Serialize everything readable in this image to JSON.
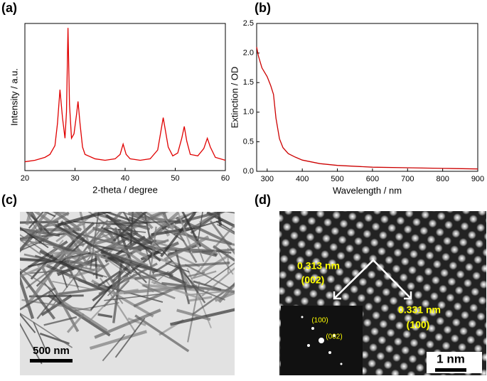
{
  "chart_data": [
    {
      "type": "line",
      "panel_label": "(a)",
      "x_label": "2-theta / degree",
      "y_label": "Intensity / a.u.",
      "color": "#e00000",
      "x": [
        20,
        22,
        24,
        25,
        26,
        26.5,
        27,
        27.5,
        28,
        28.3,
        28.6,
        28.9,
        29.3,
        29.8,
        30.3,
        30.6,
        31,
        31.5,
        32,
        34,
        36,
        38,
        39,
        39.6,
        40.2,
        41,
        43,
        45,
        46.5,
        47.2,
        47.6,
        48,
        48.6,
        49.5,
        50.5,
        51.3,
        51.8,
        52.3,
        53,
        54.5,
        55.7,
        56.4,
        57,
        58,
        60
      ],
      "values": [
        6,
        7,
        9,
        11,
        17,
        32,
        55,
        36,
        22,
        40,
        97,
        45,
        22,
        25,
        38,
        47,
        32,
        16,
        11,
        8,
        7,
        8,
        11,
        18,
        11,
        8,
        7,
        8,
        14,
        28,
        36,
        28,
        16,
        10,
        12,
        22,
        30,
        20,
        11,
        10,
        15,
        22,
        16,
        9,
        7
      ],
      "xlim": [
        20,
        60
      ],
      "xticks": [
        20,
        30,
        40,
        50,
        60
      ],
      "ylim": [
        0,
        100
      ]
    },
    {
      "type": "line",
      "panel_label": "(b)",
      "x_label": "Wavelength / nm",
      "y_label": "Extinction / OD",
      "color": "#cc0000",
      "x": [
        270,
        275,
        285,
        300,
        310,
        318,
        325,
        335,
        345,
        360,
        380,
        400,
        450,
        500,
        600,
        700,
        800,
        900
      ],
      "values": [
        2.1,
        1.95,
        1.75,
        1.6,
        1.45,
        1.3,
        0.9,
        0.55,
        0.4,
        0.3,
        0.24,
        0.19,
        0.13,
        0.1,
        0.07,
        0.06,
        0.05,
        0.04
      ],
      "xlim": [
        270,
        900
      ],
      "xticks": [
        300,
        400,
        500,
        600,
        700,
        800,
        900
      ],
      "ylim": [
        0,
        2.5
      ],
      "yticks": [
        {
          "value": 0,
          "label": "0.0"
        },
        0.5,
        {
          "value": 1,
          "label": "1.0"
        },
        1.5,
        {
          "value": 2,
          "label": "2.0"
        },
        2.5
      ]
    }
  ],
  "images": [
    {
      "panel_label": "(c)",
      "scale_bar": "500 nm"
    },
    {
      "panel_label": "(d)",
      "scale_bar": "1 nm",
      "annotations": [
        "0.313 nm",
        "(002)",
        "0.331 nm",
        "(100)"
      ],
      "inset_labels": [
        "(100)",
        "(002)"
      ]
    }
  ]
}
